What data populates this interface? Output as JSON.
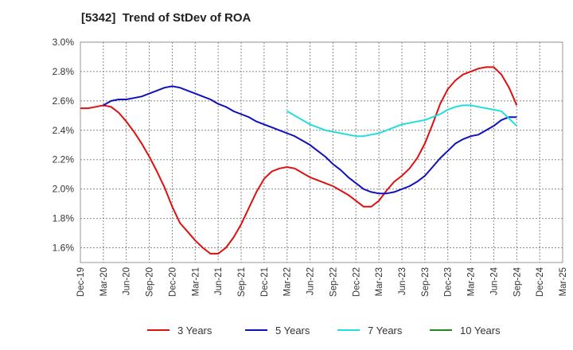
{
  "chart_data": {
    "type": "line",
    "title": "[5342]  Trend of StDev of ROA",
    "xlabel": "",
    "ylabel": "",
    "ylim": [
      1.5,
      3.0
    ],
    "grid": true,
    "legend_position": "bottom",
    "y_ticks": [
      "1.6%",
      "1.8%",
      "2.0%",
      "2.2%",
      "2.4%",
      "2.6%",
      "2.8%",
      "3.0%"
    ],
    "y_tick_values": [
      1.6,
      1.8,
      2.0,
      2.2,
      2.4,
      2.6,
      2.8,
      3.0
    ],
    "x_ticks": [
      "Dec-19",
      "Mar-20",
      "Jun-20",
      "Sep-20",
      "Dec-20",
      "Mar-21",
      "Jun-21",
      "Sep-21",
      "Dec-21",
      "Mar-22",
      "Jun-22",
      "Sep-22",
      "Dec-22",
      "Mar-23",
      "Jun-23",
      "Sep-23",
      "Dec-23",
      "Mar-24",
      "Jun-24",
      "Sep-24",
      "Dec-24",
      "Mar-25"
    ],
    "series": [
      {
        "name": "3 Years",
        "color": "#dd1111",
        "points": [
          [
            0,
            2.55
          ],
          [
            1,
            2.55
          ],
          [
            2,
            2.56
          ],
          [
            3,
            2.57
          ],
          [
            4,
            2.56
          ],
          [
            5,
            2.52
          ],
          [
            6,
            2.46
          ],
          [
            7,
            2.39
          ],
          [
            8,
            2.31
          ],
          [
            9,
            2.22
          ],
          [
            10,
            2.12
          ],
          [
            11,
            2.01
          ],
          [
            12,
            1.88
          ],
          [
            13,
            1.77
          ],
          [
            14,
            1.71
          ],
          [
            15,
            1.65
          ],
          [
            16,
            1.6
          ],
          [
            17,
            1.56
          ],
          [
            18,
            1.56
          ],
          [
            19,
            1.6
          ],
          [
            20,
            1.67
          ],
          [
            21,
            1.76
          ],
          [
            22,
            1.87
          ],
          [
            23,
            1.98
          ],
          [
            24,
            2.07
          ],
          [
            25,
            2.12
          ],
          [
            26,
            2.14
          ],
          [
            27,
            2.15
          ],
          [
            28,
            2.14
          ],
          [
            29,
            2.11
          ],
          [
            30,
            2.08
          ],
          [
            31,
            2.06
          ],
          [
            32,
            2.04
          ],
          [
            33,
            2.02
          ],
          [
            34,
            1.99
          ],
          [
            35,
            1.96
          ],
          [
            36,
            1.92
          ],
          [
            37,
            1.88
          ],
          [
            38,
            1.88
          ],
          [
            39,
            1.92
          ],
          [
            40,
            1.99
          ],
          [
            41,
            2.05
          ],
          [
            42,
            2.09
          ],
          [
            43,
            2.14
          ],
          [
            44,
            2.21
          ],
          [
            45,
            2.31
          ],
          [
            46,
            2.44
          ],
          [
            47,
            2.58
          ],
          [
            48,
            2.68
          ],
          [
            49,
            2.74
          ],
          [
            50,
            2.78
          ],
          [
            51,
            2.8
          ],
          [
            52,
            2.82
          ],
          [
            53,
            2.83
          ],
          [
            54,
            2.83
          ],
          [
            55,
            2.78
          ],
          [
            56,
            2.69
          ],
          [
            57,
            2.57
          ]
        ]
      },
      {
        "name": "5 Years",
        "color": "#1111bb",
        "points": [
          [
            3,
            2.57
          ],
          [
            4,
            2.6
          ],
          [
            5,
            2.61
          ],
          [
            6,
            2.61
          ],
          [
            7,
            2.62
          ],
          [
            8,
            2.63
          ],
          [
            9,
            2.65
          ],
          [
            10,
            2.67
          ],
          [
            11,
            2.69
          ],
          [
            12,
            2.7
          ],
          [
            13,
            2.69
          ],
          [
            14,
            2.67
          ],
          [
            15,
            2.65
          ],
          [
            16,
            2.63
          ],
          [
            17,
            2.61
          ],
          [
            18,
            2.58
          ],
          [
            19,
            2.56
          ],
          [
            20,
            2.53
          ],
          [
            21,
            2.51
          ],
          [
            22,
            2.49
          ],
          [
            23,
            2.46
          ],
          [
            24,
            2.44
          ],
          [
            25,
            2.42
          ],
          [
            26,
            2.4
          ],
          [
            27,
            2.38
          ],
          [
            28,
            2.36
          ],
          [
            29,
            2.33
          ],
          [
            30,
            2.3
          ],
          [
            31,
            2.26
          ],
          [
            32,
            2.22
          ],
          [
            33,
            2.17
          ],
          [
            34,
            2.13
          ],
          [
            35,
            2.08
          ],
          [
            36,
            2.04
          ],
          [
            37,
            2.0
          ],
          [
            38,
            1.98
          ],
          [
            39,
            1.97
          ],
          [
            40,
            1.97
          ],
          [
            41,
            1.98
          ],
          [
            42,
            2.0
          ],
          [
            43,
            2.02
          ],
          [
            44,
            2.05
          ],
          [
            45,
            2.09
          ],
          [
            46,
            2.15
          ],
          [
            47,
            2.21
          ],
          [
            48,
            2.26
          ],
          [
            49,
            2.31
          ],
          [
            50,
            2.34
          ],
          [
            51,
            2.36
          ],
          [
            52,
            2.37
          ],
          [
            53,
            2.4
          ],
          [
            54,
            2.43
          ],
          [
            55,
            2.47
          ],
          [
            56,
            2.49
          ],
          [
            57,
            2.49
          ]
        ]
      },
      {
        "name": "7 Years",
        "color": "#22dddd",
        "points": [
          [
            27,
            2.53
          ],
          [
            28,
            2.5
          ],
          [
            29,
            2.47
          ],
          [
            30,
            2.44
          ],
          [
            31,
            2.42
          ],
          [
            32,
            2.4
          ],
          [
            33,
            2.39
          ],
          [
            34,
            2.38
          ],
          [
            35,
            2.37
          ],
          [
            36,
            2.36
          ],
          [
            37,
            2.36
          ],
          [
            38,
            2.37
          ],
          [
            39,
            2.38
          ],
          [
            40,
            2.4
          ],
          [
            41,
            2.42
          ],
          [
            42,
            2.44
          ],
          [
            43,
            2.45
          ],
          [
            44,
            2.46
          ],
          [
            45,
            2.47
          ],
          [
            46,
            2.49
          ],
          [
            47,
            2.51
          ],
          [
            48,
            2.54
          ],
          [
            49,
            2.56
          ],
          [
            50,
            2.57
          ],
          [
            51,
            2.57
          ],
          [
            52,
            2.56
          ],
          [
            53,
            2.55
          ],
          [
            54,
            2.54
          ],
          [
            55,
            2.53
          ],
          [
            56,
            2.48
          ],
          [
            57,
            2.43
          ]
        ]
      },
      {
        "name": "10 Years",
        "color": "#228822",
        "points": []
      }
    ]
  }
}
